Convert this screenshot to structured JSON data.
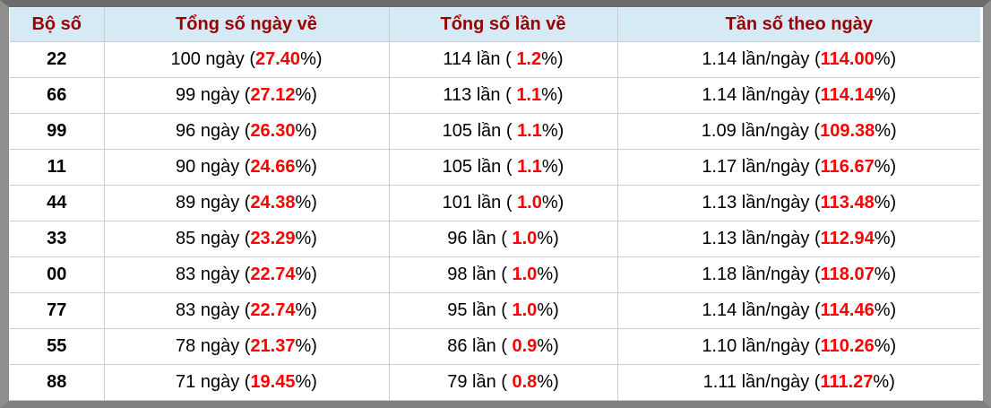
{
  "table": {
    "columns": [
      "Bộ số",
      "Tổng số ngày về",
      "Tổng số lần về",
      "Tần số theo ngày"
    ],
    "rows": [
      {
        "pair": "22",
        "days": [
          "100 ngày (",
          "27.40",
          "%)"
        ],
        "times": [
          "114 lần ( ",
          "1.2",
          "%)"
        ],
        "freq": [
          "1.14 lần/ngày (",
          "114.00",
          "%)"
        ]
      },
      {
        "pair": "66",
        "days": [
          "99 ngày (",
          "27.12",
          "%)"
        ],
        "times": [
          "113 lần ( ",
          "1.1",
          "%)"
        ],
        "freq": [
          "1.14 lần/ngày (",
          "114.14",
          "%)"
        ]
      },
      {
        "pair": "99",
        "days": [
          "96 ngày (",
          "26.30",
          "%)"
        ],
        "times": [
          "105 lần ( ",
          "1.1",
          "%)"
        ],
        "freq": [
          "1.09 lần/ngày (",
          "109.38",
          "%)"
        ]
      },
      {
        "pair": "11",
        "days": [
          "90 ngày (",
          "24.66",
          "%)"
        ],
        "times": [
          "105 lần ( ",
          "1.1",
          "%)"
        ],
        "freq": [
          "1.17 lần/ngày (",
          "116.67",
          "%)"
        ]
      },
      {
        "pair": "44",
        "days": [
          "89 ngày (",
          "24.38",
          "%)"
        ],
        "times": [
          "101 lần ( ",
          "1.0",
          "%)"
        ],
        "freq": [
          "1.13 lần/ngày (",
          "113.48",
          "%)"
        ]
      },
      {
        "pair": "33",
        "days": [
          "85 ngày (",
          "23.29",
          "%)"
        ],
        "times": [
          "96 lần ( ",
          "1.0",
          "%)"
        ],
        "freq": [
          "1.13 lần/ngày (",
          "112.94",
          "%)"
        ]
      },
      {
        "pair": "00",
        "days": [
          "83 ngày (",
          "22.74",
          "%)"
        ],
        "times": [
          "98 lần ( ",
          "1.0",
          "%)"
        ],
        "freq": [
          "1.18 lần/ngày (",
          "118.07",
          "%)"
        ]
      },
      {
        "pair": "77",
        "days": [
          "83 ngày (",
          "22.74",
          "%)"
        ],
        "times": [
          "95 lần ( ",
          "1.0",
          "%)"
        ],
        "freq": [
          "1.14 lần/ngày (",
          "114.46",
          "%)"
        ]
      },
      {
        "pair": "55",
        "days": [
          "78 ngày (",
          "21.37",
          "%)"
        ],
        "times": [
          "86 lần ( ",
          "0.9",
          "%)"
        ],
        "freq": [
          "1.10 lần/ngày (",
          "110.26",
          "%)"
        ]
      },
      {
        "pair": "88",
        "days": [
          "71 ngày (",
          "19.45",
          "%)"
        ],
        "times": [
          "79 lần ( ",
          "0.8",
          "%)"
        ],
        "freq": [
          "1.11 lần/ngày (",
          "111.27",
          "%)"
        ]
      }
    ]
  },
  "colors": {
    "header_bg": "#d5eaf4",
    "header_text": "#990000",
    "highlight_red": "#ff0000",
    "row_text": "#000000",
    "grid_border": "#cccccc",
    "frame_top": "#6b6b6b",
    "frame_sides": "#8e8e8e"
  }
}
